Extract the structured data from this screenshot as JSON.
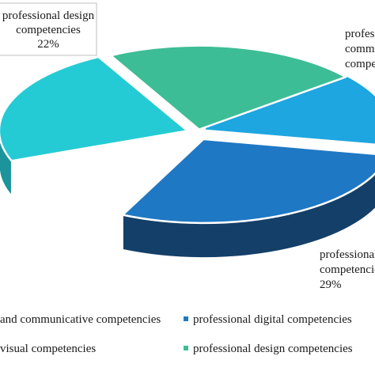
{
  "chart_data": {
    "type": "pie",
    "title": "",
    "categories": [
      "professional and communicative competencies",
      "professional digital competencies",
      "professional visual competencies",
      "professional design competencies"
    ],
    "values": [
      26,
      29,
      23,
      22
    ],
    "colors": [
      "#1ea6e0",
      "#1f78c4",
      "#25cbd4",
      "#3dbd95"
    ],
    "side_colors": [
      "#1377a5",
      "#143f68",
      "#1b949b",
      "#2a8a6c"
    ],
    "data_labels": [
      {
        "lines": [
          "professional",
          "communicative",
          "competencies"
        ]
      },
      {
        "lines": [
          "professional digital",
          "competencies",
          "29%"
        ]
      },
      {
        "lines": []
      },
      {
        "lines": [
          "professional design",
          "competencies",
          "22%"
        ]
      }
    ],
    "legend": {
      "position": "bottom",
      "entries": [
        "and communicative competencies",
        "professional digital competencies",
        "visual competencies",
        "professional design competencies"
      ]
    }
  }
}
